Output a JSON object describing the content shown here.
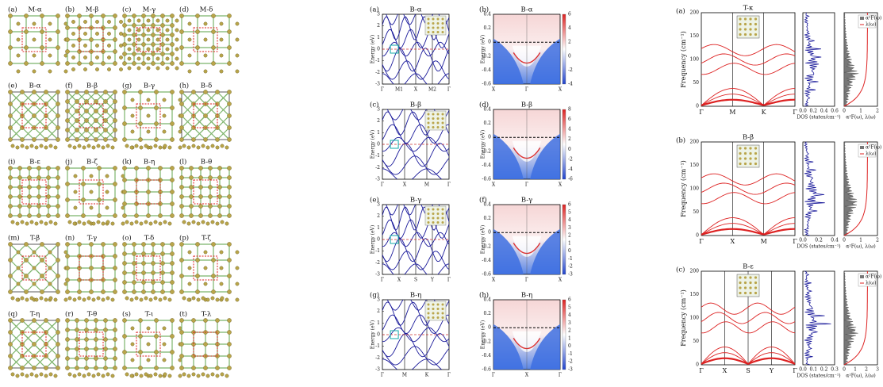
{
  "structures": [
    {
      "label": "(a)",
      "name": "M-α"
    },
    {
      "label": "(b)",
      "name": "M-β"
    },
    {
      "label": "(c)",
      "name": "M-γ"
    },
    {
      "label": "(d)",
      "name": "M-δ"
    },
    {
      "label": "(e)",
      "name": "B-α"
    },
    {
      "label": "(f)",
      "name": "B-β"
    },
    {
      "label": "(g)",
      "name": "B-γ"
    },
    {
      "label": "(h)",
      "name": "B-δ"
    },
    {
      "label": "(i)",
      "name": "B-ε"
    },
    {
      "label": "(j)",
      "name": "B-ζ"
    },
    {
      "label": "(k)",
      "name": "B-η"
    },
    {
      "label": "(l)",
      "name": "B-θ"
    },
    {
      "label": "(m)",
      "name": "T-β"
    },
    {
      "label": "(n)",
      "name": "T-γ"
    },
    {
      "label": "(o)",
      "name": "T-δ"
    },
    {
      "label": "(p)",
      "name": "T-ζ"
    },
    {
      "label": "(q)",
      "name": "T-η"
    },
    {
      "label": "(r)",
      "name": "T-θ"
    },
    {
      "label": "(s)",
      "name": "T-ι"
    },
    {
      "label": "(t)",
      "name": "T-λ"
    }
  ],
  "bands": {
    "ylabel": "Energy (eV)",
    "rows": [
      {
        "band": {
          "label": "(a)",
          "name": "B-α",
          "kpath": [
            "Γ",
            "M1",
            "X",
            "M2",
            "Γ"
          ],
          "yticks": [
            3,
            2,
            1,
            0,
            -1,
            -2,
            -3
          ]
        },
        "surface": {
          "label": "(b)",
          "name": "B-α",
          "kpath": [
            "X",
            "Γ",
            "X"
          ],
          "yticks": [
            0.4,
            0.2,
            0,
            -0.2,
            -0.4,
            -0.6
          ],
          "cbar": [
            6,
            4,
            2,
            0,
            -2,
            -4
          ]
        }
      },
      {
        "band": {
          "label": "(c)",
          "name": "B-β",
          "kpath": [
            "Γ",
            "X",
            "M",
            "Γ"
          ],
          "yticks": [
            3,
            2,
            1,
            0,
            -1,
            -2,
            -3
          ]
        },
        "surface": {
          "label": "(d)",
          "name": "B-β",
          "kpath": [
            "X",
            "Γ",
            "X"
          ],
          "yticks": [
            0.4,
            0.2,
            0,
            -0.2,
            -0.4,
            -0.6
          ],
          "cbar": [
            8,
            6,
            4,
            2,
            0,
            -2,
            -4,
            -6
          ]
        }
      },
      {
        "band": {
          "label": "(e)",
          "name": "B-γ",
          "kpath": [
            "Γ",
            "X",
            "S",
            "Y",
            "Γ"
          ],
          "yticks": [
            3,
            2,
            1,
            0,
            -1,
            -2,
            -3
          ]
        },
        "surface": {
          "label": "(f)",
          "name": "B-γ",
          "kpath": [
            "X",
            "Γ",
            "X"
          ],
          "yticks": [
            0.4,
            0.2,
            0,
            -0.2,
            -0.4,
            -0.6
          ],
          "cbar": [
            6,
            5,
            4,
            3,
            2,
            1,
            0,
            -1,
            -2,
            -3
          ]
        }
      },
      {
        "band": {
          "label": "(g)",
          "name": "B-η",
          "kpath": [
            "Γ",
            "M",
            "K",
            "Γ"
          ],
          "yticks": [
            3,
            2,
            1,
            0,
            -1,
            -2,
            -3
          ]
        },
        "surface": {
          "label": "(h)",
          "name": "B-η",
          "kpath": [
            "Γ",
            "X",
            "Γ"
          ],
          "yticks": [
            0.4,
            0.2,
            0,
            -0.2,
            -0.4,
            -0.6
          ],
          "cbar": [
            6,
            5,
            4,
            3,
            2,
            1,
            0,
            -1,
            -2,
            -3
          ]
        }
      }
    ]
  },
  "phonons": {
    "ylabel": "Frequency (cm⁻¹)",
    "a2f_label": "α²F(ω), λ(ω)",
    "legend": [
      "α²F(ω)",
      "λ(ω)"
    ],
    "yticks": [
      0,
      50,
      100,
      150,
      200
    ],
    "rows": [
      {
        "label": "(a)",
        "name": "T-κ",
        "kpath": [
          "Γ",
          "M",
          "K",
          "Γ"
        ],
        "dos_ticks": [
          "0.0",
          "0.2",
          "0.4",
          "0.6"
        ],
        "dos_label": "DOS (states/cm⁻¹)",
        "a2f_ticks": [
          0,
          1,
          2
        ]
      },
      {
        "label": "(b)",
        "name": "B-β",
        "kpath": [
          "Γ",
          "X",
          "M",
          "Γ"
        ],
        "dos_ticks": [
          "0.0",
          "0.2",
          "0.4"
        ],
        "dos_label": "DOS (states/cm⁻¹)",
        "a2f_ticks": [
          0,
          1,
          2
        ]
      },
      {
        "label": "(c)",
        "name": "B-ε",
        "kpath": [
          "Γ",
          "X",
          "S",
          "Y",
          "Γ"
        ],
        "dos_ticks": [
          "0.0",
          "0.1",
          "0.2",
          "0.3"
        ],
        "dos_label": "DOS (states/cm⁻¹)",
        "a2f_ticks": [
          0,
          1,
          2,
          3
        ]
      }
    ]
  }
}
